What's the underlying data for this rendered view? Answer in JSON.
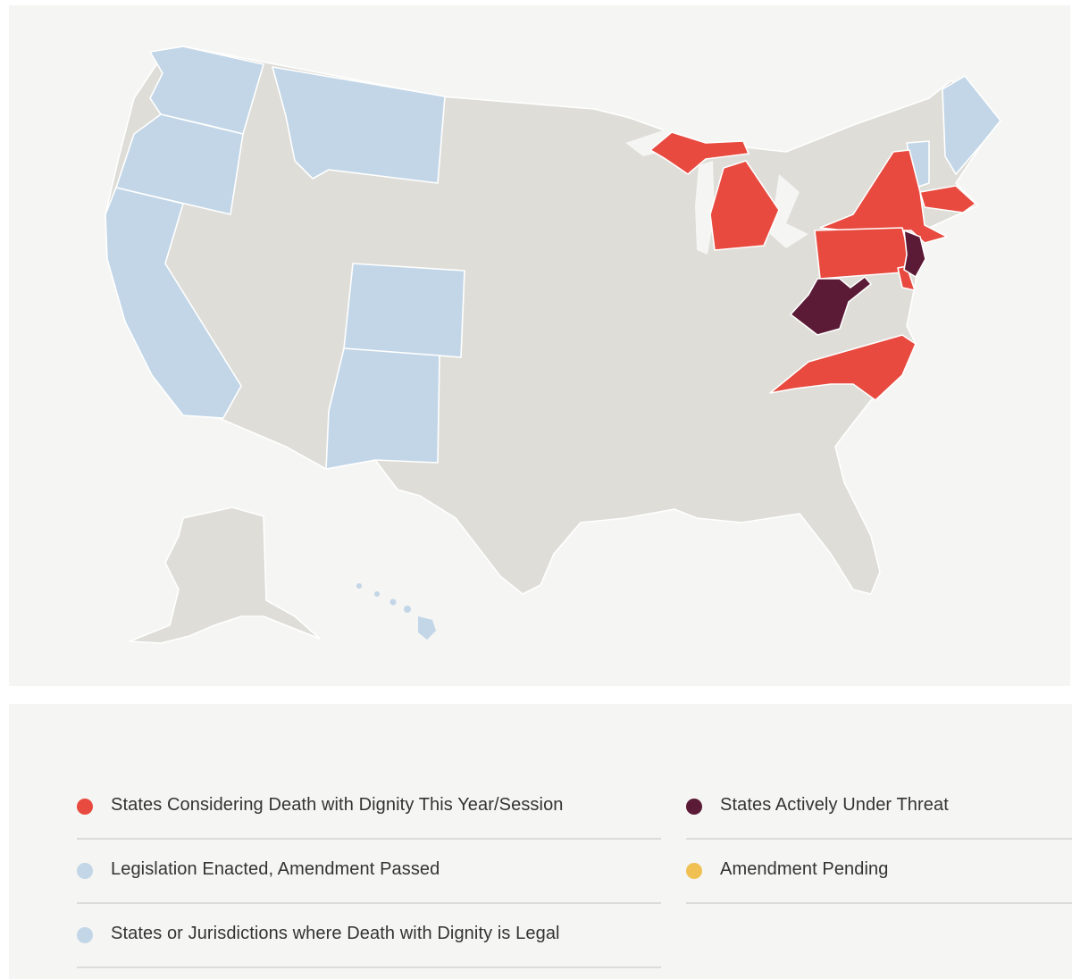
{
  "colors": {
    "considering": "#e84a3f",
    "legal": "#c2d6e7",
    "threat": "#5b1a35",
    "pending": "#f0c053",
    "neutral": "#deddd8",
    "map_background": "#f5f5f3"
  },
  "map": {
    "states_legal": [
      "WA",
      "OR",
      "CA",
      "MT",
      "CO",
      "NM",
      "VT",
      "ME",
      "HI"
    ],
    "states_considering": [
      "MI",
      "NY",
      "PA",
      "MA",
      "NC",
      "DE"
    ],
    "states_threat": [
      "WV",
      "NJ"
    ]
  },
  "legend": {
    "items": [
      {
        "label": "States Considering Death with Dignity This Year/Session",
        "color": "#e84a3f",
        "icon": "red-dot-icon"
      },
      {
        "label": "States Actively Under Threat",
        "color": "#5b1a35",
        "icon": "maroon-dot-icon"
      },
      {
        "label": "Legislation Enacted, Amendment Passed",
        "color": "#c2d6e7",
        "icon": "light-blue-dot-icon"
      },
      {
        "label": "Amendment Pending",
        "color": "#f0c053",
        "icon": "yellow-dot-icon"
      },
      {
        "label": "States or Jurisdictions where Death with Dignity is Legal",
        "color": "#c2d6e7",
        "icon": "light-blue-dot-icon"
      }
    ]
  }
}
